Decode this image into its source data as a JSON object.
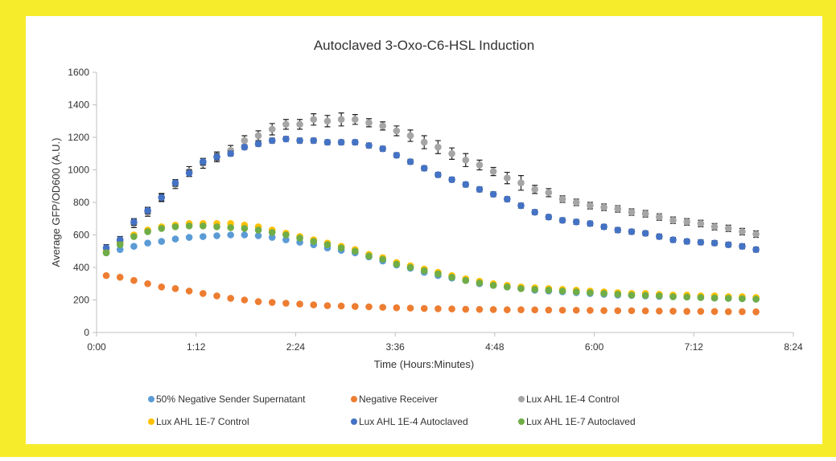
{
  "chart_data": {
    "type": "scatter",
    "title": "Autoclaved 3-Oxo-C6-HSL Induction",
    "x_label": "Time (Hours:Minutes)",
    "y_label": "Average GFP/OD600 (A.U.)",
    "x": [
      7,
      17,
      27,
      37,
      47,
      57,
      67,
      77,
      87,
      97,
      107,
      117,
      127,
      137,
      147,
      157,
      167,
      177,
      187,
      197,
      207,
      217,
      227,
      237,
      247,
      257,
      267,
      277,
      287,
      297,
      307,
      317,
      327,
      337,
      347,
      357,
      367,
      377,
      387,
      397,
      407,
      417,
      427,
      437,
      447,
      457,
      467,
      477
    ],
    "xlim": [
      0,
      504
    ],
    "xticks": [
      {
        "value": 0,
        "label": "0:00"
      },
      {
        "value": 72,
        "label": "1:12"
      },
      {
        "value": 144,
        "label": "2:24"
      },
      {
        "value": 216,
        "label": "3:36"
      },
      {
        "value": 288,
        "label": "4:48"
      },
      {
        "value": 360,
        "label": "6:00"
      },
      {
        "value": 432,
        "label": "7:12"
      },
      {
        "value": 504,
        "label": "8:24"
      }
    ],
    "ylim": [
      0,
      1600
    ],
    "yticks": [
      0,
      200,
      400,
      600,
      800,
      1000,
      1200,
      1400,
      1600
    ],
    "series": [
      {
        "name": "50% Negative Sender Supernatant",
        "color": "#5b9bd5",
        "values": [
          490,
          510,
          530,
          550,
          560,
          575,
          585,
          590,
          595,
          600,
          600,
          595,
          585,
          570,
          555,
          540,
          520,
          505,
          490,
          465,
          440,
          415,
          395,
          370,
          350,
          335,
          320,
          300,
          290,
          280,
          270,
          260,
          255,
          250,
          245,
          240,
          235,
          230,
          228,
          225,
          222,
          220,
          218,
          215,
          212,
          210,
          208,
          205
        ]
      },
      {
        "name": "Negative Receiver",
        "color": "#ed7d31",
        "values": [
          350,
          340,
          320,
          300,
          280,
          270,
          255,
          240,
          225,
          210,
          200,
          190,
          185,
          180,
          175,
          170,
          165,
          163,
          160,
          158,
          155,
          152,
          150,
          148,
          146,
          145,
          143,
          142,
          141,
          140,
          140,
          139,
          138,
          137,
          137,
          136,
          135,
          134,
          134,
          133,
          132,
          131,
          130,
          130,
          129,
          128,
          128,
          127
        ]
      },
      {
        "name": "Lux AHL 1E-4 Control",
        "color": "#a5a5a5",
        "values": [
          500,
          560,
          670,
          740,
          830,
          910,
          990,
          1040,
          1080,
          1120,
          1180,
          1210,
          1250,
          1280,
          1280,
          1310,
          1300,
          1310,
          1310,
          1290,
          1270,
          1240,
          1210,
          1170,
          1140,
          1100,
          1060,
          1030,
          990,
          950,
          920,
          880,
          860,
          820,
          800,
          780,
          770,
          760,
          740,
          730,
          710,
          690,
          680,
          670,
          650,
          640,
          620,
          605
        ],
        "errors": [
          20,
          20,
          25,
          25,
          25,
          25,
          30,
          30,
          30,
          30,
          30,
          30,
          35,
          30,
          30,
          35,
          35,
          40,
          30,
          25,
          25,
          30,
          35,
          40,
          40,
          35,
          40,
          30,
          25,
          35,
          45,
          25,
          25,
          20,
          20,
          20,
          20,
          20,
          20,
          20,
          20,
          20,
          20,
          20,
          20,
          20,
          20,
          20
        ]
      },
      {
        "name": "Lux AHL 1E-7 Control",
        "color": "#ffc000",
        "values": [
          500,
          550,
          600,
          630,
          650,
          660,
          670,
          670,
          670,
          670,
          660,
          650,
          630,
          610,
          590,
          570,
          550,
          530,
          510,
          480,
          460,
          430,
          410,
          390,
          370,
          350,
          330,
          315,
          300,
          290,
          280,
          275,
          270,
          265,
          260,
          255,
          250,
          245,
          240,
          240,
          235,
          230,
          230,
          225,
          225,
          220,
          220,
          215
        ]
      },
      {
        "name": "Lux AHL 1E-4 Autoclaved",
        "color": "#4472c4",
        "values": [
          520,
          570,
          680,
          750,
          830,
          920,
          980,
          1050,
          1080,
          1100,
          1140,
          1160,
          1180,
          1190,
          1180,
          1180,
          1170,
          1170,
          1170,
          1150,
          1130,
          1090,
          1050,
          1010,
          970,
          940,
          910,
          880,
          850,
          820,
          780,
          740,
          710,
          690,
          680,
          670,
          650,
          630,
          620,
          610,
          590,
          570,
          560,
          555,
          550,
          540,
          530,
          510
        ],
        "errors": [
          20,
          20,
          20,
          20,
          20,
          20,
          20,
          20,
          20,
          15,
          15,
          15,
          15,
          15,
          15,
          15,
          15,
          15,
          15,
          15,
          15,
          15,
          15,
          15,
          15,
          15,
          15,
          15,
          15,
          15,
          15,
          15,
          15,
          15,
          15,
          15,
          15,
          15,
          15,
          15,
          15,
          15,
          15,
          15,
          15,
          15,
          15,
          15
        ]
      },
      {
        "name": "Lux AHL 1E-7 Autoclaved",
        "color": "#70ad47",
        "values": [
          490,
          540,
          590,
          620,
          640,
          650,
          655,
          655,
          650,
          645,
          640,
          630,
          615,
          600,
          580,
          560,
          540,
          520,
          500,
          470,
          450,
          420,
          400,
          380,
          360,
          340,
          320,
          305,
          290,
          280,
          270,
          265,
          260,
          255,
          250,
          245,
          240,
          235,
          230,
          228,
          225,
          220,
          218,
          215,
          212,
          210,
          208,
          205
        ]
      }
    ]
  }
}
